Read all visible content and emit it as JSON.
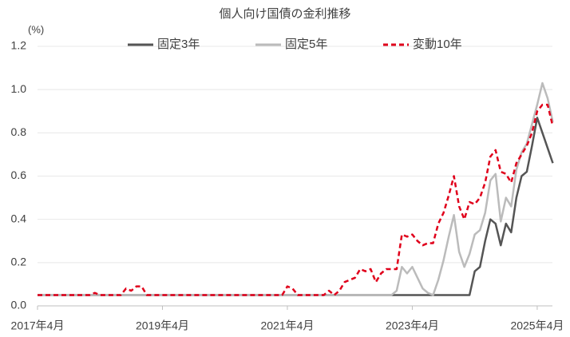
{
  "chart_data": {
    "type": "line",
    "title": "個人向け国債の金利推移",
    "y_label": "(%)",
    "categories": [
      "2017年4月",
      null,
      null,
      null,
      null,
      null,
      null,
      null,
      null,
      null,
      null,
      null,
      null,
      null,
      null,
      null,
      null,
      null,
      null,
      null,
      null,
      null,
      null,
      null,
      "2019年4月",
      null,
      null,
      null,
      null,
      null,
      null,
      null,
      null,
      null,
      null,
      null,
      null,
      null,
      null,
      null,
      null,
      null,
      null,
      null,
      null,
      null,
      null,
      null,
      "2021年4月",
      null,
      null,
      null,
      null,
      null,
      null,
      null,
      null,
      null,
      null,
      null,
      null,
      null,
      null,
      null,
      null,
      null,
      null,
      null,
      null,
      null,
      null,
      null,
      "2023年4月",
      null,
      null,
      null,
      null,
      null,
      null,
      null,
      null,
      null,
      null,
      null,
      null,
      null,
      null,
      null,
      null,
      null,
      null,
      null,
      null,
      null,
      null,
      null,
      "2025年4月",
      null,
      null,
      null
    ],
    "series": [
      {
        "name": "固定3年",
        "color": "#555555",
        "dashed": false,
        "values": [
          0.05,
          0.05,
          0.05,
          0.05,
          0.05,
          0.05,
          0.05,
          0.05,
          0.05,
          0.05,
          0.05,
          0.05,
          0.05,
          0.05,
          0.05,
          0.05,
          0.05,
          0.05,
          0.05,
          0.05,
          0.05,
          0.05,
          0.05,
          0.05,
          0.05,
          0.05,
          0.05,
          0.05,
          0.05,
          0.05,
          0.05,
          0.05,
          0.05,
          0.05,
          0.05,
          0.05,
          0.05,
          0.05,
          0.05,
          0.05,
          0.05,
          0.05,
          0.05,
          0.05,
          0.05,
          0.05,
          0.05,
          0.05,
          0.05,
          0.05,
          0.05,
          0.05,
          0.05,
          0.05,
          0.05,
          0.05,
          0.05,
          0.05,
          0.05,
          0.05,
          0.05,
          0.05,
          0.05,
          0.05,
          0.05,
          0.05,
          0.05,
          0.05,
          0.05,
          0.05,
          0.05,
          0.05,
          0.05,
          0.05,
          0.05,
          0.05,
          0.05,
          0.05,
          0.05,
          0.05,
          0.05,
          0.05,
          0.05,
          0.05,
          0.16,
          0.18,
          0.3,
          0.4,
          0.38,
          0.28,
          0.38,
          0.34,
          0.5,
          0.6,
          0.62,
          0.74,
          0.87,
          0.8,
          0.73,
          0.66
        ]
      },
      {
        "name": "固定5年",
        "color": "#bbbbbb",
        "dashed": false,
        "values": [
          0.05,
          0.05,
          0.05,
          0.05,
          0.05,
          0.05,
          0.05,
          0.05,
          0.05,
          0.05,
          0.05,
          0.05,
          0.05,
          0.05,
          0.05,
          0.05,
          0.05,
          0.05,
          0.05,
          0.05,
          0.05,
          0.05,
          0.05,
          0.05,
          0.05,
          0.05,
          0.05,
          0.05,
          0.05,
          0.05,
          0.05,
          0.05,
          0.05,
          0.05,
          0.05,
          0.05,
          0.05,
          0.05,
          0.05,
          0.05,
          0.05,
          0.05,
          0.05,
          0.05,
          0.05,
          0.05,
          0.05,
          0.05,
          0.05,
          0.05,
          0.05,
          0.05,
          0.05,
          0.05,
          0.05,
          0.05,
          0.05,
          0.05,
          0.05,
          0.05,
          0.05,
          0.05,
          0.05,
          0.05,
          0.05,
          0.05,
          0.05,
          0.05,
          0.05,
          0.07,
          0.18,
          0.15,
          0.18,
          0.13,
          0.08,
          0.06,
          0.05,
          0.12,
          0.21,
          0.32,
          0.42,
          0.25,
          0.18,
          0.24,
          0.33,
          0.35,
          0.43,
          0.58,
          0.61,
          0.39,
          0.5,
          0.46,
          0.63,
          0.71,
          0.75,
          0.84,
          0.93,
          1.03,
          0.96,
          0.85
        ]
      },
      {
        "name": "変動10年",
        "color": "#e0001b",
        "dashed": true,
        "values": [
          0.05,
          0.05,
          0.05,
          0.05,
          0.05,
          0.05,
          0.05,
          0.05,
          0.05,
          0.05,
          0.05,
          0.06,
          0.05,
          0.05,
          0.05,
          0.05,
          0.05,
          0.08,
          0.07,
          0.09,
          0.09,
          0.05,
          0.05,
          0.05,
          0.05,
          0.05,
          0.05,
          0.05,
          0.05,
          0.05,
          0.05,
          0.05,
          0.05,
          0.05,
          0.05,
          0.05,
          0.05,
          0.05,
          0.05,
          0.05,
          0.05,
          0.05,
          0.05,
          0.05,
          0.05,
          0.05,
          0.05,
          0.05,
          0.09,
          0.08,
          0.05,
          0.05,
          0.05,
          0.05,
          0.05,
          0.05,
          0.07,
          0.05,
          0.07,
          0.11,
          0.12,
          0.13,
          0.17,
          0.16,
          0.17,
          0.11,
          0.15,
          0.17,
          0.17,
          0.17,
          0.33,
          0.32,
          0.33,
          0.3,
          0.28,
          0.29,
          0.29,
          0.38,
          0.43,
          0.51,
          0.6,
          0.46,
          0.4,
          0.48,
          0.47,
          0.5,
          0.57,
          0.69,
          0.72,
          0.62,
          0.61,
          0.57,
          0.66,
          0.7,
          0.74,
          0.8,
          0.9,
          0.93,
          0.93,
          0.83
        ]
      }
    ],
    "ylim": [
      0,
      1.2
    ],
    "yticks": [
      {
        "value": 0,
        "label": "0.0"
      },
      0.2,
      0.4,
      0.6,
      0.8,
      {
        "value": 1,
        "label": "1.0"
      },
      1.2
    ],
    "grid": true
  }
}
